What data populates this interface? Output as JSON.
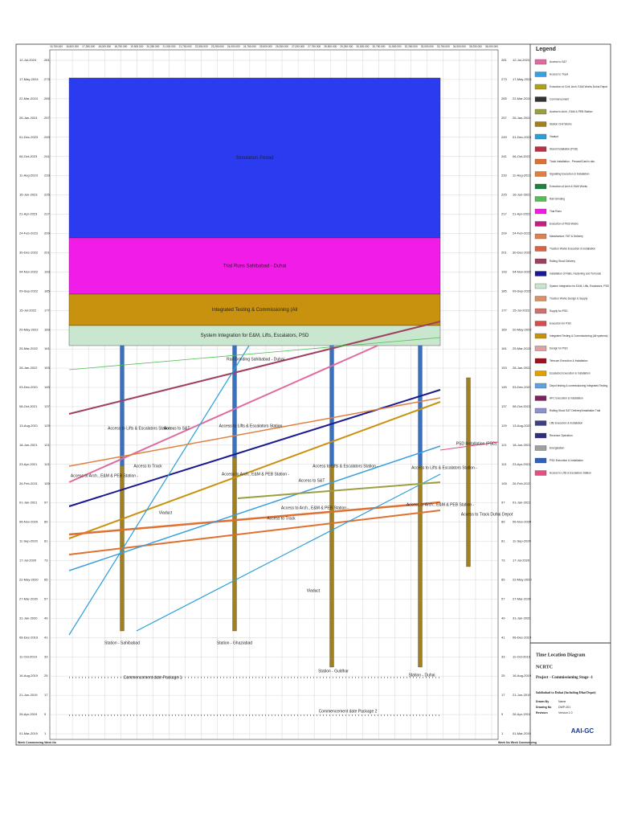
{
  "header": {
    "title": "Legend"
  },
  "dates": [
    "12-Jul-2024",
    "17-May-2024",
    "22-Mar-2024",
    "26-Jan-2024",
    "01-Dec-2023",
    "06-Oct-2023",
    "11-Aug-2023",
    "16-Jun-2023",
    "21-Apr-2023",
    "24-Feb-2023",
    "30-Dec-2022",
    "04-Nov-2022",
    "09-Sep-2022",
    "15-Jul-2022",
    "20-May-2022",
    "25-Mar-2022",
    "28-Jan-2022",
    "03-Dec-2021",
    "08-Oct-2021",
    "13-Aug-2021",
    "18-Jun-2021",
    "23-Apr-2021",
    "26-Feb-2021",
    "01-Jan-2021",
    "06-Nov-2020",
    "11-Sep-2020",
    "17-Jul-2020",
    "22-May-2020",
    "27-Mar-2020",
    "31-Jan-2020",
    "06-Dec-2019",
    "11-Oct-2019",
    "16-Aug-2019",
    "21-Jun-2019",
    "26-Apr-2019",
    "01-Mar-2019"
  ],
  "weeks": [
    "281",
    "273",
    "265",
    "257",
    "249",
    "241",
    "233",
    "225",
    "217",
    "209",
    "201",
    "193",
    "185",
    "177",
    "169",
    "161",
    "153",
    "145",
    "137",
    "129",
    "121",
    "113",
    "105",
    "97",
    "89",
    "81",
    "73",
    "65",
    "57",
    "49",
    "41",
    "33",
    "25",
    "17",
    "9",
    "1"
  ],
  "chainages": [
    "15,750.000",
    "16,500.000",
    "17,250.000",
    "18,000.000",
    "18,750.000",
    "19,500.000",
    "20,250.000",
    "21,000.000",
    "21,750.000",
    "22,500.000",
    "23,250.000",
    "24,000.000",
    "24,750.000",
    "25,500.000",
    "26,250.000",
    "27,000.000",
    "27,750.000",
    "28,500.000",
    "29,250.000",
    "30,000.000",
    "30,750.000",
    "31,500.000",
    "32,250.000",
    "33,000.000",
    "33,750.000",
    "34,500.000",
    "35,250.000",
    "36,000.000"
  ],
  "footer": {
    "left": "Week Commencing Week No",
    "right": "Week No Week Commencing"
  },
  "blocks": [
    {
      "label": "Simulation Period",
      "color": "#2b3cf0"
    },
    {
      "label": "Trial Runs Sahibabad - Duhai",
      "color": "#f21ce8"
    },
    {
      "label": "Integrated Testing & Commissioning (All",
      "color": "#c9920e"
    },
    {
      "label": "System Integration for E&M, Lifts, Escalators, PSD",
      "color": "#c9e6cf"
    }
  ],
  "annotations": [
    "Station - Sahibabad",
    "Station - Ghaziabad",
    "Station - Guldhar",
    "Station - Duhai",
    "Commencement date Package 1",
    "Commencement date Package 2",
    "Viaduct",
    "Viaduct",
    "Rail Grinding Sahibabad - Duhai",
    "Access to Lifts & Escalators Station -",
    "Access to S&T",
    "Access to Lifts & Escalators Station",
    "Access to Arch., E&M & PEB Station -",
    "Access to Track",
    "Access to Arch., E&M & PEB Station -",
    "Access to S&T",
    "Access to Track",
    "Access to Lifts & Escalators Station -",
    "Access to Arch., E&M & PEB Station -",
    "Access to Lifts & Escalators Station -",
    "Access to Arch., E&M & PEB Station -",
    "PSD Installation (PSD)",
    "Access to Track Duhai Depot"
  ],
  "legend": [
    {
      "label": "Access to S&T",
      "color": "#e06c9f"
    },
    {
      "label": "Access to Track",
      "color": "#3aa0e0"
    },
    {
      "label": "Execution of Civil, Arch, E&M Works Duhai Depot",
      "color": "#b0a020"
    },
    {
      "label": "Commencement",
      "color": "#333333"
    },
    {
      "label": "Access to Arch., E&M & PEB Station",
      "color": "#9aa040"
    },
    {
      "label": "Station Civil Works",
      "color": "#a08020"
    },
    {
      "label": "Viaduct",
      "color": "#2a9fd8"
    },
    {
      "label": "Stand Installation (PSD)",
      "color": "#c03040"
    },
    {
      "label": "Track Installation - Precast/Cast in situ",
      "color": "#e07030"
    },
    {
      "label": "Signalling Execution & Installation",
      "color": "#e08040"
    },
    {
      "label": "Execution of Arch & E&M Works",
      "color": "#208040"
    },
    {
      "label": "Rail Grinding",
      "color": "#50c050"
    },
    {
      "label": "Trial Runs",
      "color": "#f21ce8"
    },
    {
      "label": "Execution of PEB Works",
      "color": "#c02080"
    },
    {
      "label": "Manufacture, FAT & Delivery",
      "color": "#e08050"
    },
    {
      "label": "Traction Works Execution & Installation",
      "color": "#e06040"
    },
    {
      "label": "Rolling Stock Delivery",
      "color": "#a04060"
    },
    {
      "label": "Installation of Rails, Fastening and Turnouts",
      "color": "#1a1a90"
    },
    {
      "label": "System Integration for E&M, Lifts, Escalators, PSD",
      "color": "#c9e6cf"
    },
    {
      "label": "Traction Works Design & Supply",
      "color": "#e09060"
    },
    {
      "label": "Supply for PSD",
      "color": "#d07070"
    },
    {
      "label": "Execution for PSD",
      "color": "#d05050"
    },
    {
      "label": "Integrated Testing & Commissioning (All systems)",
      "color": "#c9920e"
    },
    {
      "label": "Design for PSD",
      "color": "#e0a0a0"
    },
    {
      "label": "Telecom Execution & Installation",
      "color": "#a01020"
    },
    {
      "label": "Escalators Execution & Installation",
      "color": "#e0a000"
    },
    {
      "label": "Depot testing & commissioning Integrated Testing",
      "color": "#60a0e0"
    },
    {
      "label": "AFC Execution & Installation",
      "color": "#802060"
    },
    {
      "label": "Rolling Stock S&T Delivery/Installation Trial",
      "color": "#9090d0"
    },
    {
      "label": "Lifts Execution & Installation",
      "color": "#404080"
    },
    {
      "label": "Revenue Operation",
      "color": "#303080"
    },
    {
      "label": "Energisation",
      "color": "#a0a0a0"
    },
    {
      "label": "PSD Execution & Installation",
      "color": "#3060c0"
    },
    {
      "label": "Access to Lifts & Escalators Station",
      "color": "#e05080"
    }
  ],
  "title_block": {
    "title": "Time Location Diagram",
    "client": "NCRTC",
    "project": "Project - Commissioning Stage -1",
    "section": "Sahibabad to Duhai (Including Dhai Depot)",
    "fields": [
      [
        "Drawn By",
        "Name"
      ],
      [
        "Drawing No",
        "DWP-001"
      ],
      [
        "Revision",
        "Version 1.0"
      ]
    ],
    "logo": "AAI-GC"
  }
}
